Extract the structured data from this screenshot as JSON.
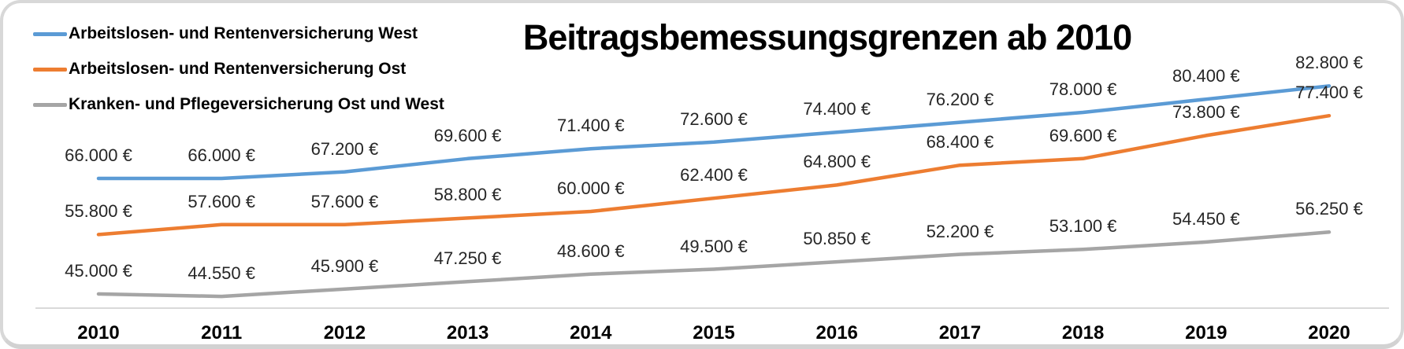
{
  "title": "Beitragsbemessungsgrenzen ab 2010",
  "frame_border_color": "#d8d8d8",
  "axis_line_color": "#d9d9d9",
  "chart_data": {
    "type": "line",
    "title": "Beitragsbemessungsgrenzen ab 2010",
    "x": [
      2010,
      2011,
      2012,
      2013,
      2014,
      2015,
      2016,
      2017,
      2018,
      2019,
      2020
    ],
    "x_labels": [
      "2010",
      "2011",
      "2012",
      "2013",
      "2014",
      "2015",
      "2016",
      "2017",
      "2018",
      "2019",
      "2020"
    ],
    "ylim": [
      42000,
      84000
    ],
    "grid": false,
    "legend_position": "top-left",
    "data_label_format": "#.##0 €",
    "series": [
      {
        "name": "Arbeitslosen- und Rentenversicherung West",
        "color": "#5B9BD5",
        "values": [
          66000,
          66000,
          67200,
          69600,
          71400,
          72600,
          74400,
          76200,
          78000,
          80400,
          82800
        ],
        "labels": [
          "66.000 €",
          "66.000 €",
          "67.200 €",
          "69.600 €",
          "71.400 €",
          "72.600 €",
          "74.400 €",
          "76.200 €",
          "78.000 €",
          "80.400 €",
          "82.800 €"
        ]
      },
      {
        "name": "Arbeitslosen- und Rentenversicherung Ost",
        "color": "#ED7D31",
        "values": [
          55800,
          57600,
          57600,
          58800,
          60000,
          62400,
          64800,
          68400,
          69600,
          73800,
          77400
        ],
        "labels": [
          "55.800 €",
          "57.600 €",
          "57.600 €",
          "58.800 €",
          "60.000 €",
          "62.400 €",
          "64.800 €",
          "68.400 €",
          "69.600 €",
          "73.800 €",
          "77.400 €"
        ]
      },
      {
        "name": "Kranken- und Pflegeversicherung Ost und West",
        "color": "#A5A5A5",
        "values": [
          45000,
          44550,
          45900,
          47250,
          48600,
          49500,
          50850,
          52200,
          53100,
          54450,
          56250
        ],
        "labels": [
          "45.000 €",
          "44.550 €",
          "45.900 €",
          "47.250 €",
          "48.600 €",
          "49.500 €",
          "50.850 €",
          "52.200 €",
          "53.100 €",
          "54.450 €",
          "56.250 €"
        ]
      }
    ]
  }
}
